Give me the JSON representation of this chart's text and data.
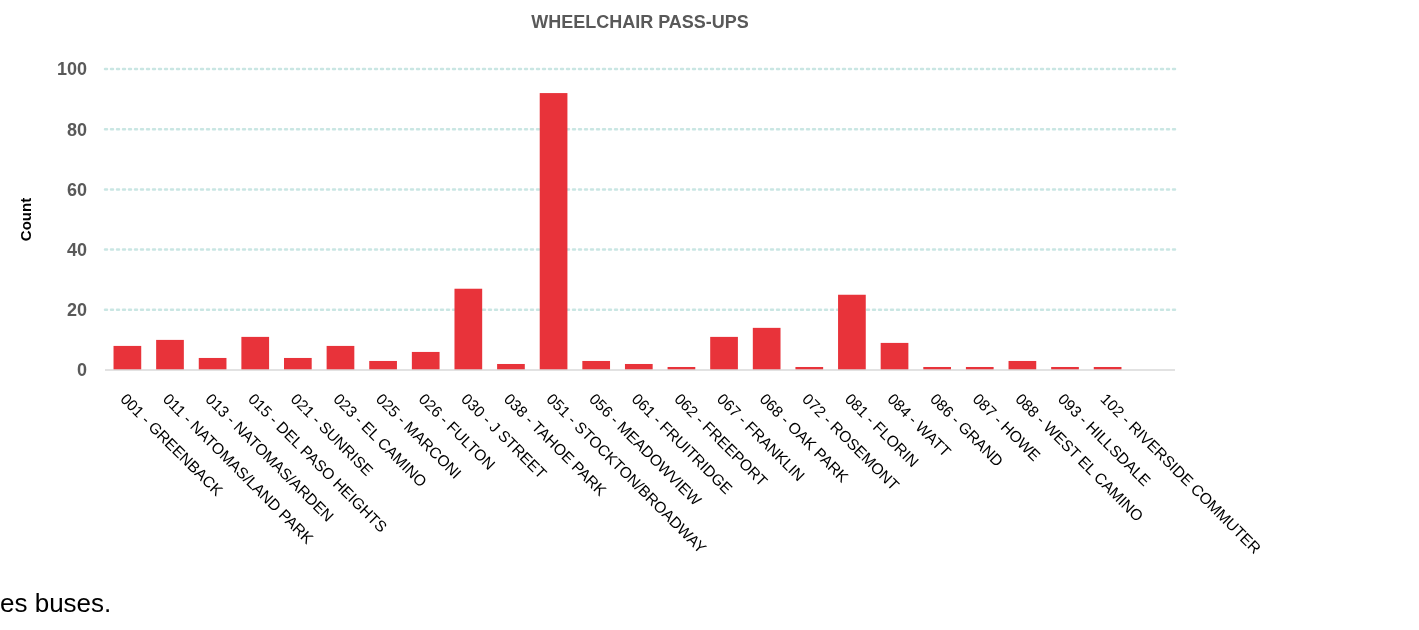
{
  "chart_data": {
    "type": "bar",
    "title": "WHEELCHAIR PASS-UPS",
    "ylabel": "Count",
    "categories": [
      "001 - GREENBACK",
      "011 - NATOMAS/LAND PARK",
      "013 - NATOMAS/ARDEN",
      "015 - DEL PASO HEIGHTS",
      "021 - SUNRISE",
      "023 - EL CAMINO",
      "025 - MARCONI",
      "026 - FULTON",
      "030 - J STREET",
      "038 - TAHOE PARK",
      "051 - STOCKTON/BROADWAY",
      "056 - MEADOWVIEW",
      "061 - FRUITRIDGE",
      "062 - FREEPORT",
      "067 - FRANKLIN",
      "068 - OAK PARK",
      "072 - ROSEMONT",
      "081 - FLORIN",
      "084 - WATT",
      "086 - GRAND",
      "087 - HOWE",
      "088 - WEST EL CAMINO",
      "093 - HILLSDALE",
      "102 - RIVERSIDE COMMUTER"
    ],
    "values": [
      8,
      10,
      4,
      11,
      4,
      8,
      3,
      6,
      27,
      2,
      92,
      3,
      2,
      1,
      11,
      14,
      1,
      25,
      9,
      1,
      1,
      3,
      1,
      1
    ],
    "color": "#e8333a",
    "ylim": [
      0,
      100
    ],
    "yticks": [
      0,
      20,
      40,
      60,
      80,
      100
    ],
    "grid": "y",
    "annotations": [
      "es buses."
    ]
  }
}
